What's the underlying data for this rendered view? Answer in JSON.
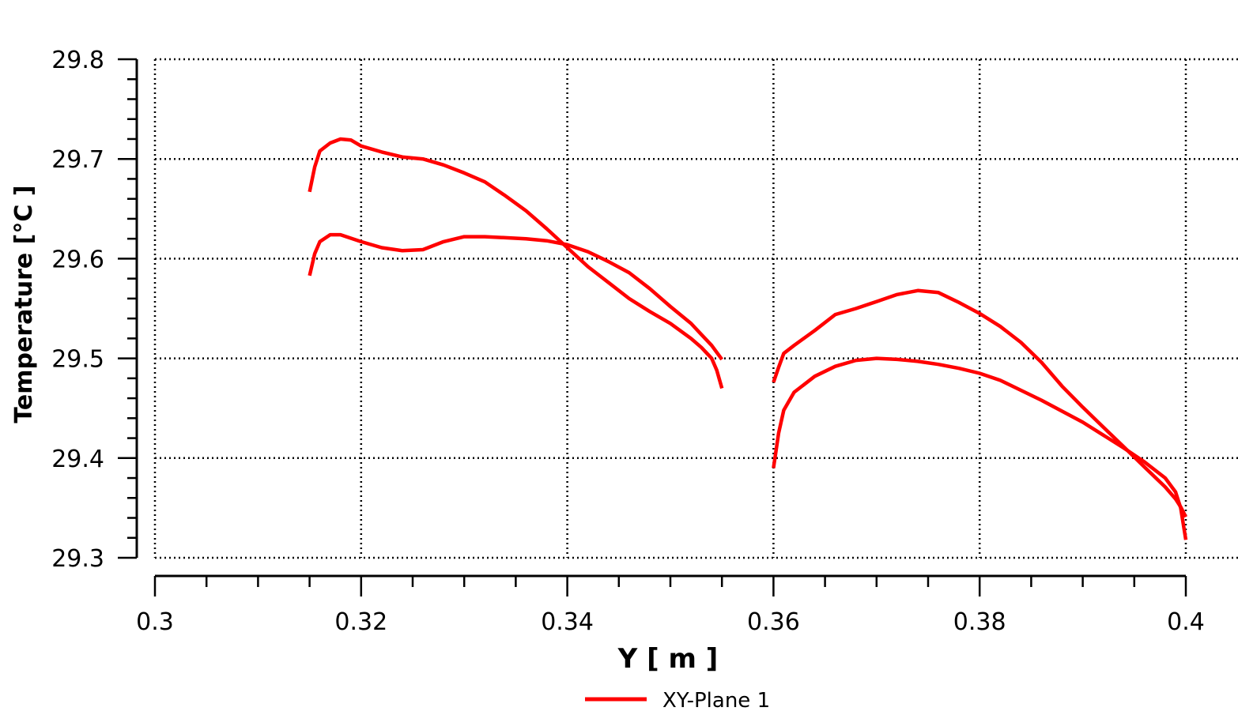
{
  "chart_data": {
    "type": "line",
    "title": "",
    "xlabel": "Y [ m ]",
    "ylabel": "Temperature [°C ]",
    "xlim": [
      0.3,
      0.4
    ],
    "ylim": [
      29.3,
      29.8
    ],
    "x_ticks": [
      0.3,
      0.32,
      0.34,
      0.36,
      0.38,
      0.4
    ],
    "x_tick_labels": [
      "0.3",
      "0.32",
      "0.34",
      "0.36",
      "0.38",
      "0.4"
    ],
    "y_ticks": [
      29.3,
      29.4,
      29.5,
      29.6,
      29.7,
      29.8
    ],
    "y_tick_labels": [
      "29.3",
      "29.4",
      "29.5",
      "29.6",
      "29.7",
      "29.8"
    ],
    "grid": true,
    "grid_style": "dotted",
    "legend": {
      "position": "bottom-center",
      "entries": [
        "XY-Plane 1"
      ]
    },
    "series_color": "#ff0000",
    "series": [
      {
        "name": "XY-Plane 1",
        "segments": [
          {
            "x": [
              0.315,
              0.3155,
              0.316,
              0.317,
              0.318,
              0.319,
              0.32,
              0.322,
              0.324,
              0.326,
              0.328,
              0.33,
              0.332,
              0.334,
              0.336,
              0.338,
              0.34,
              0.342,
              0.344,
              0.346,
              0.348,
              0.35,
              0.352,
              0.353,
              0.354,
              0.3545,
              0.355
            ],
            "y": [
              29.667,
              29.692,
              29.708,
              29.716,
              29.72,
              29.719,
              29.713,
              29.707,
              29.702,
              29.7,
              29.694,
              29.686,
              29.677,
              29.663,
              29.648,
              29.63,
              29.611,
              29.592,
              29.576,
              29.56,
              29.547,
              29.535,
              29.52,
              29.511,
              29.5,
              29.488,
              29.47
            ]
          },
          {
            "x": [
              0.315,
              0.3155,
              0.316,
              0.317,
              0.318,
              0.32,
              0.322,
              0.324,
              0.326,
              0.328,
              0.33,
              0.332,
              0.334,
              0.336,
              0.338,
              0.34,
              0.342,
              0.344,
              0.346,
              0.348,
              0.35,
              0.352,
              0.353,
              0.354,
              0.355
            ],
            "y": [
              29.583,
              29.605,
              29.617,
              29.624,
              29.624,
              29.617,
              29.611,
              29.608,
              29.609,
              29.617,
              29.622,
              29.622,
              29.621,
              29.62,
              29.618,
              29.614,
              29.607,
              29.597,
              29.586,
              29.57,
              29.552,
              29.535,
              29.524,
              29.513,
              29.499
            ]
          },
          {
            "x": [
              0.36,
              0.3605,
              0.361,
              0.362,
              0.364,
              0.366,
              0.368,
              0.37,
              0.372,
              0.374,
              0.376,
              0.378,
              0.38,
              0.382,
              0.384,
              0.386,
              0.388,
              0.39,
              0.392,
              0.394,
              0.396,
              0.398,
              0.399,
              0.3995,
              0.4
            ],
            "y": [
              29.476,
              29.491,
              29.505,
              29.513,
              29.528,
              29.544,
              29.55,
              29.557,
              29.564,
              29.568,
              29.566,
              29.556,
              29.545,
              29.532,
              29.516,
              29.496,
              29.472,
              29.451,
              29.431,
              29.411,
              29.391,
              29.371,
              29.359,
              29.351,
              29.341
            ]
          },
          {
            "x": [
              0.36,
              0.3605,
              0.361,
              0.362,
              0.364,
              0.366,
              0.368,
              0.37,
              0.372,
              0.374,
              0.376,
              0.378,
              0.38,
              0.382,
              0.384,
              0.386,
              0.388,
              0.39,
              0.392,
              0.394,
              0.396,
              0.398,
              0.399,
              0.3995,
              0.4
            ],
            "y": [
              29.39,
              29.425,
              29.448,
              29.466,
              29.482,
              29.492,
              29.498,
              29.5,
              29.499,
              29.497,
              29.494,
              29.49,
              29.485,
              29.478,
              29.468,
              29.458,
              29.447,
              29.436,
              29.423,
              29.41,
              29.396,
              29.38,
              29.366,
              29.35,
              29.318
            ]
          }
        ]
      }
    ]
  }
}
